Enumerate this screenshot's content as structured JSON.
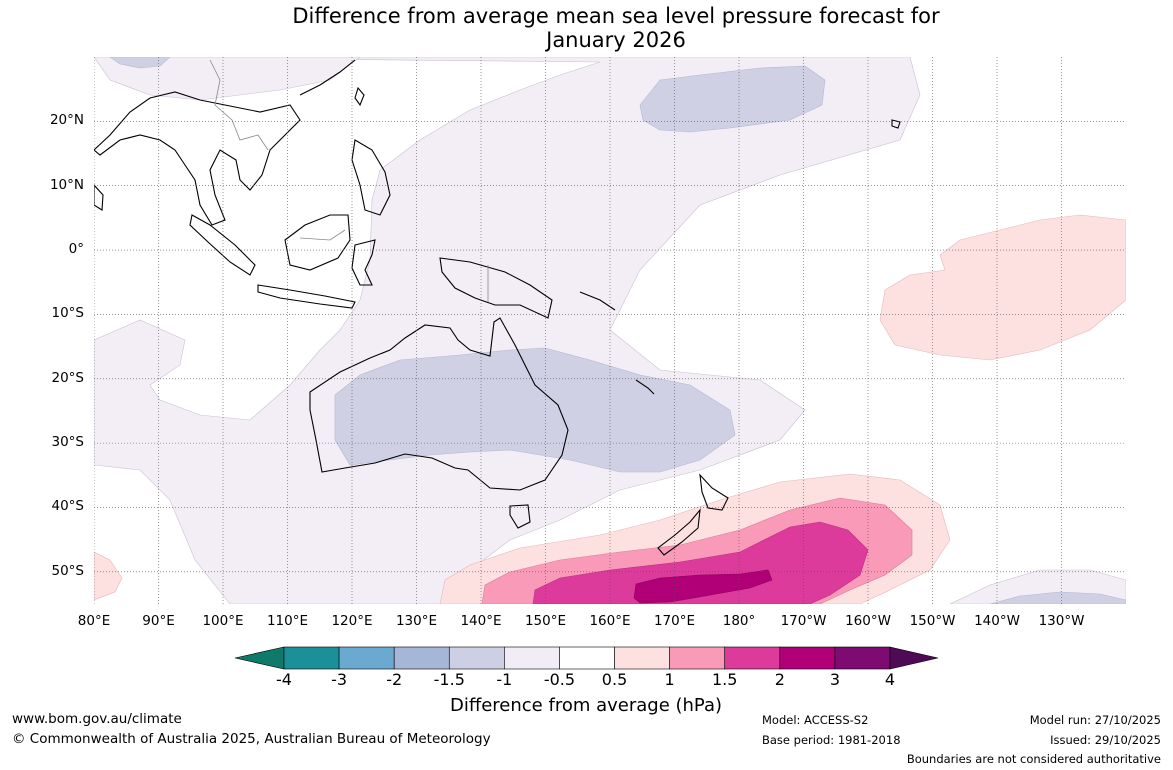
{
  "title": {
    "line1": "Difference from average mean sea level pressure forecast for",
    "line2": "January 2026"
  },
  "map": {
    "lat_labels": [
      "20°N",
      "10°N",
      "0°",
      "10°S",
      "20°S",
      "30°S",
      "40°S",
      "50°S"
    ],
    "lon_labels": [
      "80°E",
      "90°E",
      "100°E",
      "110°E",
      "120°E",
      "130°E",
      "140°E",
      "150°E",
      "160°E",
      "170°E",
      "180°",
      "170°W",
      "160°W",
      "150°W",
      "140°W",
      "130°W"
    ],
    "extent": {
      "lon": [
        80,
        240
      ],
      "lat": [
        -55,
        30
      ]
    }
  },
  "colorbar": {
    "title": "Difference from average (hPa)",
    "ticks": [
      "-4",
      "-3",
      "-2",
      "-1.5",
      "-1",
      "-0.5",
      "0.5",
      "1",
      "1.5",
      "2",
      "3",
      "4"
    ],
    "colors": [
      "#0d7a6a",
      "#1c9098",
      "#6aa9d0",
      "#a5b6d6",
      "#cdd0e4",
      "#f1ecf5",
      "#ffffff",
      "#fde0e0",
      "#f89ab8",
      "#dc3b9c",
      "#b10077",
      "#7d0b72",
      "#4f0a55"
    ]
  },
  "footer": {
    "url": "www.bom.gov.au/climate",
    "copyright": "© Commonwealth of Australia 2025, Australian Bureau of Meteorology",
    "model": "Model: ACCESS-S2",
    "base_period": "Base period: 1981-2018",
    "model_run": "Model run: 27/10/2025",
    "issued": "Issued: 29/10/2025",
    "disclaimer": "Boundaries are not considered authoritative"
  }
}
